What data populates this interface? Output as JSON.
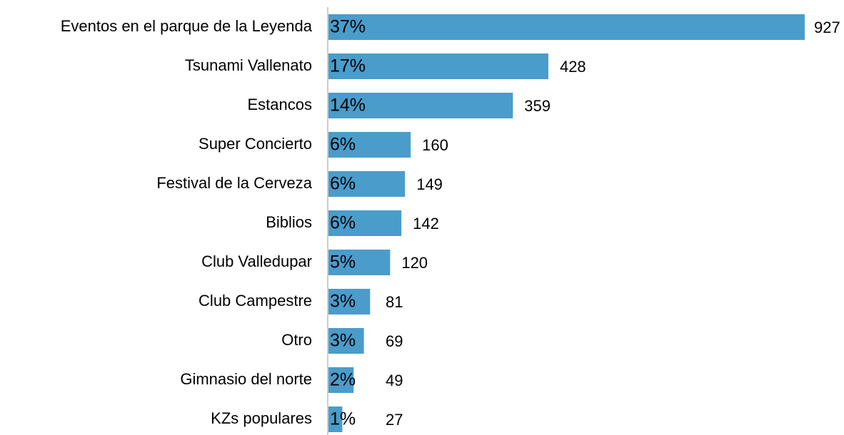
{
  "chart_data": {
    "type": "bar",
    "orientation": "horizontal",
    "color": "#4a9ccb",
    "categories": [
      "Eventos en el parque de la Leyenda",
      "Tsunami Vallenato",
      "Estancos",
      "Super Concierto",
      "Festival de la Cerveza",
      "Biblios",
      "Club Valledupar",
      "Club Campestre",
      "Otro",
      "Gimnasio del norte",
      "KZs populares"
    ],
    "values": [
      927,
      428,
      359,
      160,
      149,
      142,
      120,
      81,
      69,
      49,
      27
    ],
    "percent": [
      37,
      17,
      14,
      6,
      6,
      6,
      5,
      3,
      3,
      2,
      1
    ],
    "percent_labels": [
      "37%",
      "17%",
      "14%",
      "6%",
      "6%",
      "6%",
      "5%",
      "3%",
      "3%",
      "2%",
      "1%"
    ]
  }
}
